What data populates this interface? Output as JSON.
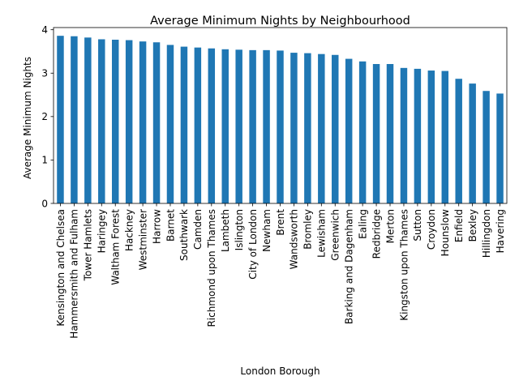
{
  "chart_data": {
    "type": "bar",
    "title": "Average Minimum Nights by Neighbourhood",
    "xlabel": "London Borough",
    "ylabel": "Average Minimum Nights",
    "ylim": [
      0,
      4.05
    ],
    "yticks": [
      0,
      1,
      2,
      3,
      4
    ],
    "grid": false,
    "legend": "none",
    "bar_color": "#1f77b4",
    "categories": [
      "Kensington and Chelsea",
      "Hammersmith and Fulham",
      "Tower Hamlets",
      "Haringey",
      "Waltham Forest",
      "Hackney",
      "Westminster",
      "Harrow",
      "Barnet",
      "Southwark",
      "Camden",
      "Richmond upon Thames",
      "Lambeth",
      "Islington",
      "City of London",
      "Newham",
      "Brent",
      "Wandsworth",
      "Bromley",
      "Lewisham",
      "Greenwich",
      "Barking and Dagenham",
      "Ealing",
      "Redbridge",
      "Merton",
      "Kingston upon Thames",
      "Sutton",
      "Croydon",
      "Hounslow",
      "Enfield",
      "Bexley",
      "Hillingdon",
      "Havering"
    ],
    "values": [
      3.86,
      3.85,
      3.82,
      3.78,
      3.77,
      3.76,
      3.73,
      3.71,
      3.65,
      3.61,
      3.59,
      3.57,
      3.55,
      3.54,
      3.53,
      3.53,
      3.52,
      3.47,
      3.46,
      3.44,
      3.42,
      3.33,
      3.27,
      3.21,
      3.21,
      3.12,
      3.1,
      3.06,
      3.05,
      2.87,
      2.76,
      2.59,
      2.53
    ]
  }
}
